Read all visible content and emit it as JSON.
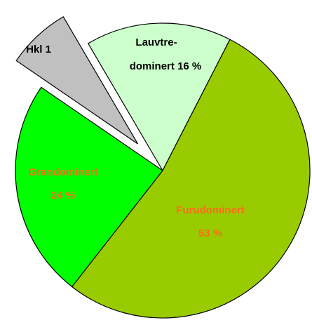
{
  "chart_data": {
    "type": "pie",
    "categories": [
      [
        "Hkl 1"
      ],
      [
        "Lauvtre-",
        "dominert"
      ],
      [
        "Furudominert"
      ],
      [
        "Grandominert"
      ]
    ],
    "values": [
      7,
      16,
      53,
      24
    ],
    "value_labels": [
      null,
      "16 %",
      "53 %",
      "24 %"
    ],
    "colors": [
      "#c0c0c0",
      "#ccffcc",
      "#99cc00",
      "#00ff00"
    ],
    "label_colors": [
      "#000000",
      "#000000",
      "#ff6a1a",
      "#ff6a1a"
    ]
  }
}
